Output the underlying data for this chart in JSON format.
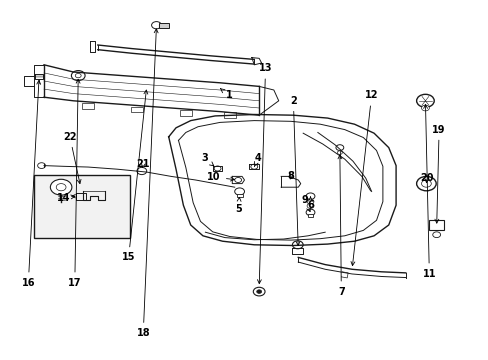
{
  "background_color": "#ffffff",
  "line_color": "#1a1a1a",
  "figsize": [
    4.89,
    3.6
  ],
  "dpi": 100,
  "label_positions": {
    "1": [
      0.465,
      0.735,
      0.445,
      0.76
    ],
    "2": [
      0.605,
      0.72,
      0.585,
      0.745
    ],
    "3": [
      0.42,
      0.545,
      0.398,
      0.555
    ],
    "4": [
      0.53,
      0.545,
      0.51,
      0.555
    ],
    "5": [
      0.49,
      0.395,
      0.47,
      0.39
    ],
    "6": [
      0.64,
      0.39,
      0.62,
      0.4
    ],
    "7": [
      0.7,
      0.175,
      0.682,
      0.195
    ],
    "8": [
      0.6,
      0.49,
      0.58,
      0.5
    ],
    "9": [
      0.625,
      0.415,
      0.605,
      0.425
    ],
    "10": [
      0.44,
      0.48,
      0.42,
      0.49
    ],
    "11": [
      0.88,
      0.235,
      0.86,
      0.245
    ],
    "12": [
      0.76,
      0.72,
      0.74,
      0.73
    ],
    "13": [
      0.545,
      0.79,
      0.525,
      0.8
    ],
    "14": [
      0.13,
      0.45,
      0.15,
      0.45
    ],
    "15": [
      0.265,
      0.28,
      0.285,
      0.29
    ],
    "16": [
      0.06,
      0.215,
      0.08,
      0.225
    ],
    "17": [
      0.155,
      0.215,
      0.175,
      0.225
    ],
    "18": [
      0.295,
      0.07,
      0.315,
      0.08
    ],
    "19": [
      0.9,
      0.63,
      0.88,
      0.64
    ],
    "20": [
      0.875,
      0.49,
      0.855,
      0.5
    ],
    "21": [
      0.295,
      0.53,
      0.315,
      0.53
    ],
    "22": [
      0.145,
      0.6,
      0.165,
      0.61
    ]
  }
}
